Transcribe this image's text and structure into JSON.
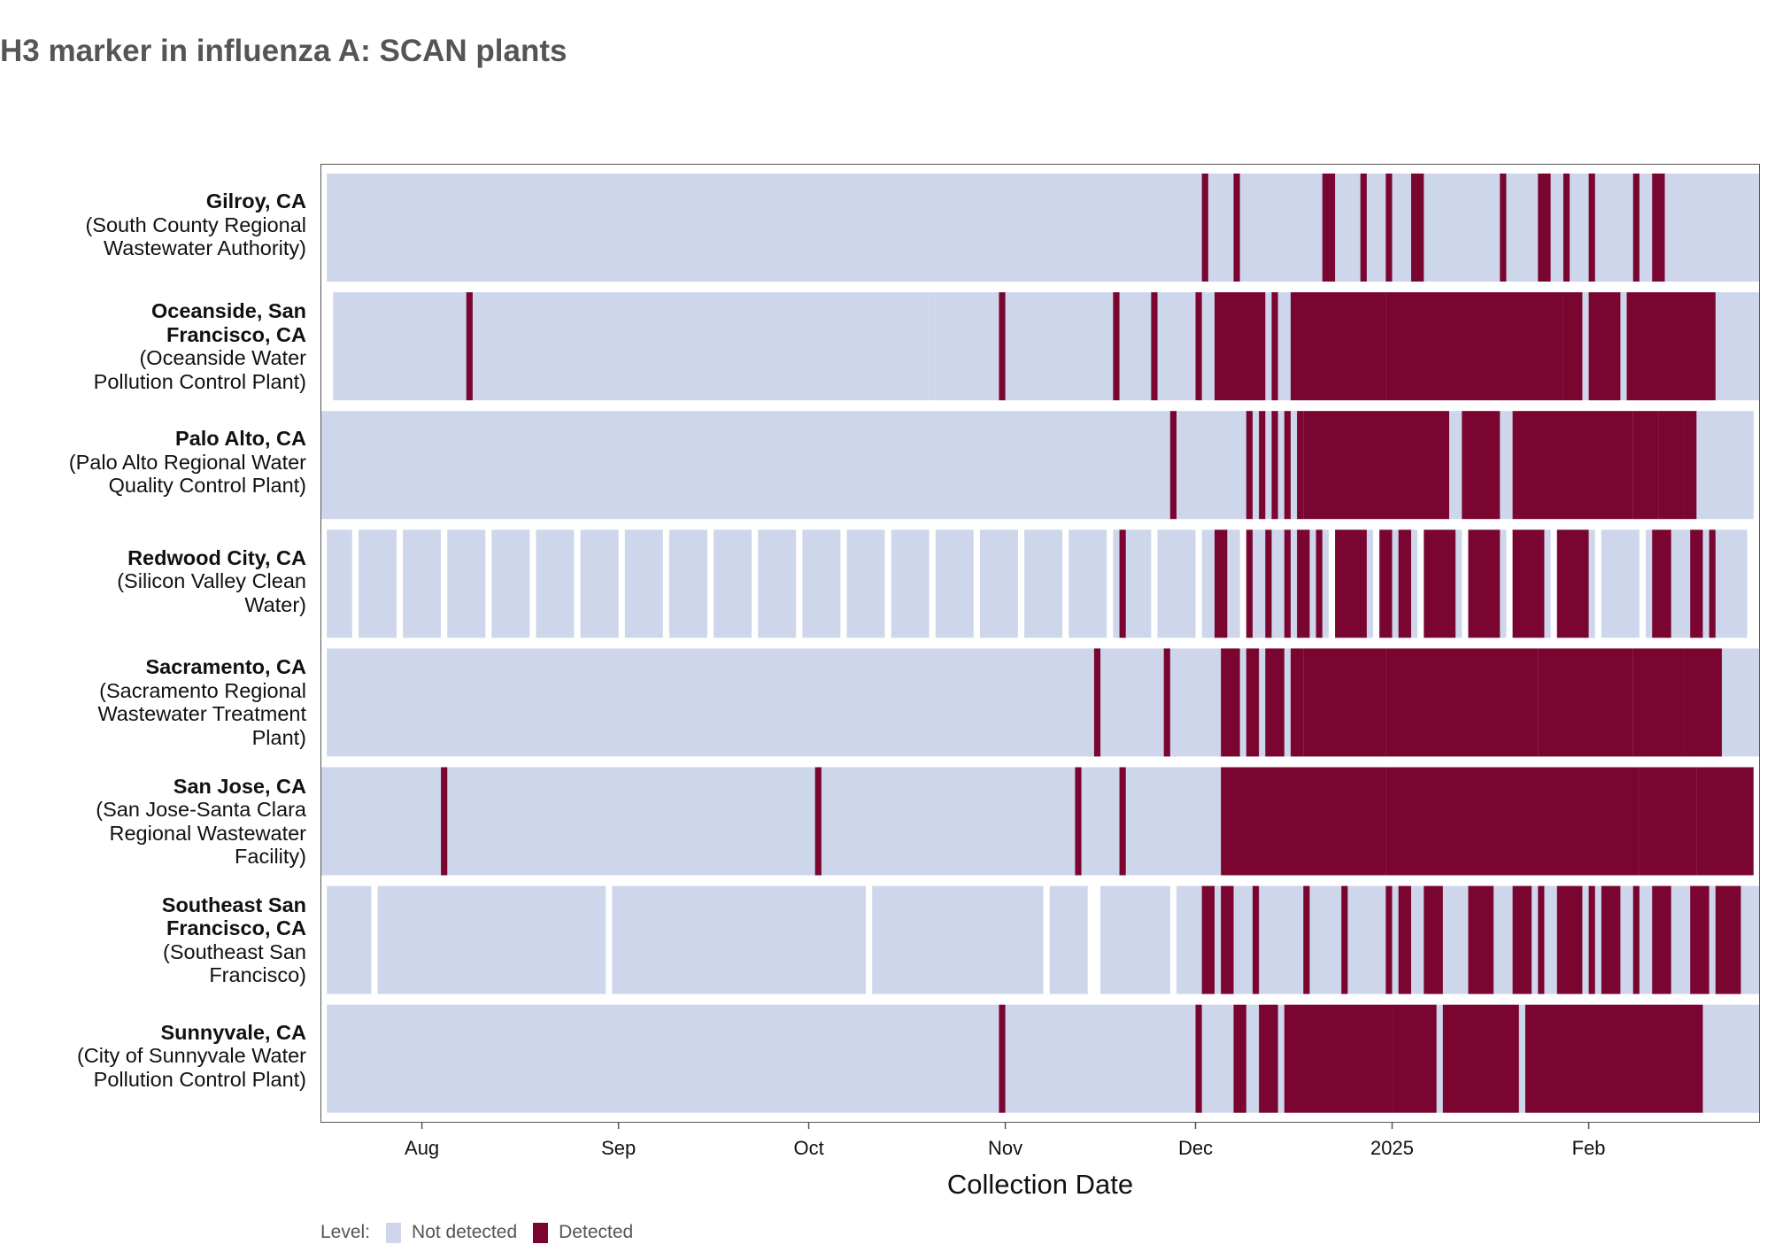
{
  "chart_data": {
    "type": "heatmap",
    "title": "H3 marker in influenza A: SCAN plants",
    "xlabel": "Collection Date",
    "x_range": [
      "2024-07-16",
      "2025-02-27"
    ],
    "x_ticks": [
      {
        "label": "Aug",
        "date": "2024-08-01"
      },
      {
        "label": "Sep",
        "date": "2024-09-01"
      },
      {
        "label": "Oct",
        "date": "2024-10-01"
      },
      {
        "label": "Nov",
        "date": "2024-11-01"
      },
      {
        "label": "Dec",
        "date": "2024-12-01"
      },
      {
        "label": "2025",
        "date": "2025-01-01"
      },
      {
        "label": "Feb",
        "date": "2025-02-01"
      }
    ],
    "legend": {
      "title": "Level:",
      "position": "bottom-left",
      "entries": [
        {
          "label": "Not detected",
          "color": "#cdd6eb"
        },
        {
          "label": "Detected",
          "color": "#7a0530"
        }
      ]
    },
    "series": [
      {
        "location": "Gilroy, CA",
        "facility": "(South County Regional Wastewater Authority)",
        "label_lines": [
          "Gilroy, CA",
          "(South County Regional",
          "Wastewater Authority)"
        ],
        "coverage": [
          [
            "2024-07-17",
            "2025-02-27"
          ]
        ],
        "detected": [
          [
            "2024-12-02",
            "2024-12-02"
          ],
          [
            "2024-12-07",
            "2024-12-07"
          ],
          [
            "2024-12-21",
            "2024-12-22"
          ],
          [
            "2024-12-27",
            "2024-12-27"
          ],
          [
            "2024-12-31",
            "2024-12-31"
          ],
          [
            "2025-01-04",
            "2025-01-05"
          ],
          [
            "2025-01-18",
            "2025-01-18"
          ],
          [
            "2025-01-24",
            "2025-01-25"
          ],
          [
            "2025-01-28",
            "2025-01-28"
          ],
          [
            "2025-02-01",
            "2025-02-01"
          ],
          [
            "2025-02-08",
            "2025-02-08"
          ],
          [
            "2025-02-11",
            "2025-02-12"
          ]
        ]
      },
      {
        "location": "Oceanside, San Francisco, CA",
        "facility": "(Oceanside Water Pollution Control Plant)",
        "label_lines": [
          "Oceanside, San",
          "Francisco, CA",
          "(Oceanside Water",
          "Pollution Control Plant)"
        ],
        "coverage": [
          [
            "2024-07-18",
            "2024-08-06"
          ],
          [
            "2024-08-07",
            "2024-08-08"
          ],
          [
            "2024-08-08",
            "2024-10-19"
          ],
          [
            "2024-10-20",
            "2024-10-20"
          ],
          [
            "2024-10-21",
            "2024-12-20"
          ],
          [
            "2024-12-21",
            "2025-02-27"
          ]
        ],
        "detected": [
          [
            "2024-08-08",
            "2024-08-08"
          ],
          [
            "2024-10-31",
            "2024-10-31"
          ],
          [
            "2024-11-18",
            "2024-11-18"
          ],
          [
            "2024-11-24",
            "2024-11-24"
          ],
          [
            "2024-12-01",
            "2024-12-01"
          ],
          [
            "2024-12-04",
            "2024-12-11"
          ],
          [
            "2024-12-13",
            "2024-12-13"
          ],
          [
            "2024-12-16",
            "2024-12-30"
          ],
          [
            "2024-12-31",
            "2025-01-27"
          ],
          [
            "2025-01-28",
            "2025-01-30"
          ],
          [
            "2025-02-01",
            "2025-02-05"
          ],
          [
            "2025-02-07",
            "2025-02-20"
          ]
        ]
      },
      {
        "location": "Palo Alto, CA",
        "facility": "(Palo Alto Regional Water Quality Control Plant)",
        "label_lines": [
          "Palo Alto, CA",
          "(Palo Alto Regional Water",
          "Quality Control Plant)"
        ],
        "coverage": [
          [
            "2024-07-16",
            "2025-02-26"
          ]
        ],
        "detected": [
          [
            "2024-11-27",
            "2024-11-27"
          ],
          [
            "2024-12-09",
            "2024-12-09"
          ],
          [
            "2024-12-11",
            "2024-12-11"
          ],
          [
            "2024-12-13",
            "2024-12-13"
          ],
          [
            "2024-12-15",
            "2024-12-15"
          ],
          [
            "2024-12-17",
            "2024-12-17"
          ],
          [
            "2024-12-18",
            "2025-01-09"
          ],
          [
            "2025-01-12",
            "2025-01-17"
          ],
          [
            "2025-01-20",
            "2025-02-07"
          ],
          [
            "2025-02-08",
            "2025-02-11"
          ],
          [
            "2025-02-12",
            "2025-02-15"
          ],
          [
            "2025-02-16",
            "2025-02-17"
          ]
        ]
      },
      {
        "location": "Redwood City, CA",
        "facility": "(Silicon Valley Clean Water)",
        "label_lines": [
          "Redwood City, CA",
          "(Silicon Valley Clean",
          "Water)"
        ],
        "coverage": [
          [
            "2024-07-17",
            "2024-07-20"
          ],
          [
            "2024-07-22",
            "2024-07-27"
          ],
          [
            "2024-07-29",
            "2024-08-03"
          ],
          [
            "2024-08-05",
            "2024-08-10"
          ],
          [
            "2024-08-12",
            "2024-08-17"
          ],
          [
            "2024-08-19",
            "2024-08-24"
          ],
          [
            "2024-08-26",
            "2024-08-31"
          ],
          [
            "2024-09-02",
            "2024-09-07"
          ],
          [
            "2024-09-09",
            "2024-09-14"
          ],
          [
            "2024-09-16",
            "2024-09-21"
          ],
          [
            "2024-09-23",
            "2024-09-28"
          ],
          [
            "2024-09-30",
            "2024-10-05"
          ],
          [
            "2024-10-07",
            "2024-10-12"
          ],
          [
            "2024-10-14",
            "2024-10-19"
          ],
          [
            "2024-10-21",
            "2024-10-26"
          ],
          [
            "2024-10-28",
            "2024-11-02"
          ],
          [
            "2024-11-04",
            "2024-11-09"
          ],
          [
            "2024-11-11",
            "2024-11-16"
          ],
          [
            "2024-11-18",
            "2024-11-23"
          ],
          [
            "2024-11-25",
            "2024-11-30"
          ],
          [
            "2024-12-02",
            "2024-12-07"
          ],
          [
            "2024-12-09",
            "2024-12-14"
          ],
          [
            "2024-12-15",
            "2024-12-16"
          ],
          [
            "2024-12-16",
            "2024-12-21"
          ],
          [
            "2024-12-23",
            "2024-12-28"
          ],
          [
            "2024-12-30",
            "2025-01-04"
          ],
          [
            "2025-01-06",
            "2025-01-11"
          ],
          [
            "2025-01-13",
            "2025-01-18"
          ],
          [
            "2025-01-20",
            "2025-01-25"
          ],
          [
            "2025-01-27",
            "2025-02-01"
          ],
          [
            "2025-02-03",
            "2025-02-08"
          ],
          [
            "2025-02-10",
            "2025-02-15"
          ],
          [
            "2025-02-16",
            "2025-02-17"
          ],
          [
            "2025-02-17",
            "2025-02-25"
          ]
        ],
        "detected": [
          [
            "2024-11-19",
            "2024-11-19"
          ],
          [
            "2024-12-04",
            "2024-12-05"
          ],
          [
            "2024-12-09",
            "2024-12-09"
          ],
          [
            "2024-12-12",
            "2024-12-12"
          ],
          [
            "2024-12-15",
            "2024-12-15"
          ],
          [
            "2024-12-17",
            "2024-12-18"
          ],
          [
            "2024-12-20",
            "2024-12-20"
          ],
          [
            "2024-12-23",
            "2024-12-27"
          ],
          [
            "2024-12-30",
            "2024-12-31"
          ],
          [
            "2025-01-02",
            "2025-01-03"
          ],
          [
            "2025-01-06",
            "2025-01-10"
          ],
          [
            "2025-01-13",
            "2025-01-17"
          ],
          [
            "2025-01-20",
            "2025-01-24"
          ],
          [
            "2025-01-27",
            "2025-01-31"
          ],
          [
            "2025-02-11",
            "2025-02-13"
          ],
          [
            "2025-02-17",
            "2025-02-18"
          ],
          [
            "2025-02-20",
            "2025-02-20"
          ]
        ]
      },
      {
        "location": "Sacramento, CA",
        "facility": "(Sacramento Regional Wastewater Treatment Plant)",
        "label_lines": [
          "Sacramento, CA",
          "(Sacramento Regional",
          "Wastewater Treatment",
          "Plant)"
        ],
        "coverage": [
          [
            "2024-07-17",
            "2025-02-27"
          ]
        ],
        "detected": [
          [
            "2024-11-15",
            "2024-11-15"
          ],
          [
            "2024-11-26",
            "2024-11-26"
          ],
          [
            "2024-12-05",
            "2024-12-07"
          ],
          [
            "2024-12-09",
            "2024-12-10"
          ],
          [
            "2024-12-12",
            "2024-12-14"
          ],
          [
            "2024-12-16",
            "2024-12-17"
          ],
          [
            "2024-12-18",
            "2024-12-30"
          ],
          [
            "2024-12-31",
            "2025-01-23"
          ],
          [
            "2025-01-24",
            "2025-02-07"
          ],
          [
            "2025-02-08",
            "2025-02-15"
          ],
          [
            "2025-02-16",
            "2025-02-21"
          ]
        ]
      },
      {
        "location": "San Jose, CA",
        "facility": "(San Jose-Santa Clara Regional Wastewater Facility)",
        "label_lines": [
          "San Jose, CA",
          "(San Jose-Santa Clara",
          "Regional Wastewater",
          "Facility)"
        ],
        "coverage": [
          [
            "2024-07-16",
            "2024-08-05"
          ],
          [
            "2024-08-06",
            "2024-10-16"
          ],
          [
            "2024-10-16",
            "2025-02-26"
          ]
        ],
        "detected": [
          [
            "2024-08-04",
            "2024-08-04"
          ],
          [
            "2024-10-02",
            "2024-10-02"
          ],
          [
            "2024-11-12",
            "2024-11-12"
          ],
          [
            "2024-11-19",
            "2024-11-19"
          ],
          [
            "2024-12-05",
            "2024-12-30"
          ],
          [
            "2024-12-31",
            "2025-02-08"
          ],
          [
            "2025-02-09",
            "2025-02-17"
          ],
          [
            "2025-02-18",
            "2025-02-26"
          ]
        ]
      },
      {
        "location": "Southeast San Francisco, CA",
        "facility": "(Southeast San Francisco)",
        "label_lines": [
          "Southeast San",
          "Francisco, CA",
          "(Southeast San",
          "Francisco)"
        ],
        "coverage": [
          [
            "2024-07-17",
            "2024-07-23"
          ],
          [
            "2024-07-25",
            "2024-08-29"
          ],
          [
            "2024-08-31",
            "2024-10-09"
          ],
          [
            "2024-10-11",
            "2024-11-06"
          ],
          [
            "2024-11-08",
            "2024-11-13"
          ],
          [
            "2024-11-16",
            "2024-11-26"
          ],
          [
            "2024-11-28",
            "2024-12-05"
          ],
          [
            "2024-12-06",
            "2025-02-27"
          ]
        ],
        "detected": [
          [
            "2024-12-02",
            "2024-12-03"
          ],
          [
            "2024-12-05",
            "2024-12-06"
          ],
          [
            "2024-12-10",
            "2024-12-10"
          ],
          [
            "2024-12-18",
            "2024-12-18"
          ],
          [
            "2024-12-24",
            "2024-12-24"
          ],
          [
            "2024-12-31",
            "2024-12-31"
          ],
          [
            "2025-01-02",
            "2025-01-03"
          ],
          [
            "2025-01-06",
            "2025-01-08"
          ],
          [
            "2025-01-13",
            "2025-01-16"
          ],
          [
            "2025-01-20",
            "2025-01-22"
          ],
          [
            "2025-01-24",
            "2025-01-24"
          ],
          [
            "2025-01-27",
            "2025-01-30"
          ],
          [
            "2025-02-01",
            "2025-02-01"
          ],
          [
            "2025-02-03",
            "2025-02-05"
          ],
          [
            "2025-02-08",
            "2025-02-08"
          ],
          [
            "2025-02-11",
            "2025-02-13"
          ],
          [
            "2025-02-17",
            "2025-02-19"
          ],
          [
            "2025-02-21",
            "2025-02-24"
          ]
        ]
      },
      {
        "location": "Sunnyvale, CA",
        "facility": "(City of Sunnyvale Water Pollution Control Plant)",
        "label_lines": [
          "Sunnyvale, CA",
          "(City of Sunnyvale Water",
          "Pollution Control Plant)"
        ],
        "coverage": [
          [
            "2024-07-17",
            "2025-02-27"
          ]
        ],
        "detected": [
          [
            "2024-10-31",
            "2024-10-31"
          ],
          [
            "2024-12-01",
            "2024-12-01"
          ],
          [
            "2024-12-07",
            "2024-12-08"
          ],
          [
            "2024-12-11",
            "2024-12-13"
          ],
          [
            "2024-12-15",
            "2024-12-31"
          ],
          [
            "2025-01-01",
            "2025-01-07"
          ],
          [
            "2025-01-09",
            "2025-01-20"
          ],
          [
            "2025-01-22",
            "2025-02-18"
          ]
        ]
      }
    ]
  }
}
